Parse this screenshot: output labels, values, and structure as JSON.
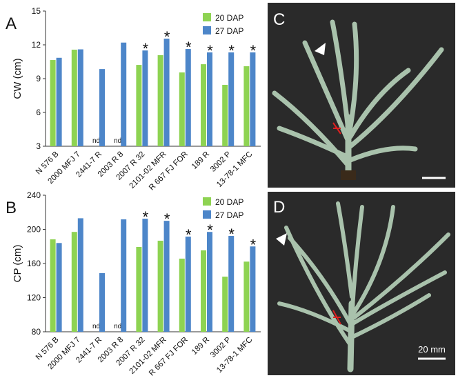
{
  "chart_data": [
    {
      "type": "bar",
      "panel": "A",
      "y_label": "CW (cm)",
      "categories": [
        "N 576 B",
        "2000 MFJ 7",
        "2441-7 R",
        "2003 R 8",
        "2007 R 32",
        "2101-02 MFR",
        "R 667 FJ FOR",
        "189 R",
        "3002 P",
        "13-78-1 MFC"
      ],
      "series": [
        {
          "name": "20 DAP",
          "color": "#8ed352",
          "values": [
            10.65,
            11.57,
            null,
            null,
            10.22,
            11.08,
            9.55,
            10.28,
            8.45,
            10.1
          ],
          "value_labels": [
            null,
            null,
            "nd",
            "nd",
            null,
            null,
            null,
            null,
            null,
            null
          ]
        },
        {
          "name": "27 DAP",
          "color": "#4d86c9",
          "values": [
            10.85,
            11.6,
            9.85,
            12.2,
            11.5,
            12.55,
            11.63,
            11.33,
            11.33,
            11.33
          ],
          "significance": [
            null,
            null,
            null,
            null,
            "*",
            "*",
            "*",
            "*",
            "*",
            "*"
          ]
        }
      ],
      "ylim": [
        3,
        15
      ],
      "yticks": [
        3,
        6,
        9,
        12,
        15
      ],
      "grid": false,
      "legend": "top-right"
    },
    {
      "type": "bar",
      "panel": "B",
      "y_label": "CP (cm)",
      "categories": [
        "N 576 B",
        "2000 MFJ 7",
        "2441-7 R",
        "2003 R 8",
        "2007 R 32",
        "2101-02 MFR",
        "R 667 FJ FOR",
        "189 R",
        "3002 P",
        "13-78-1 MFC"
      ],
      "series": [
        {
          "name": "20 DAP",
          "color": "#8ed352",
          "values": [
            188.3,
            197,
            null,
            null,
            179.4,
            186.7,
            165.7,
            175.4,
            144.6,
            162.2
          ],
          "value_labels": [
            null,
            null,
            "nd",
            "nd",
            null,
            null,
            null,
            null,
            null,
            null
          ]
        },
        {
          "name": "27 DAP",
          "color": "#4d86c9",
          "values": [
            184,
            213,
            148.7,
            211.7,
            212.5,
            210,
            191.5,
            197,
            192.3,
            180
          ],
          "significance": [
            null,
            null,
            null,
            null,
            "*",
            "*",
            "*",
            "*",
            "*",
            "*"
          ]
        }
      ],
      "ylim": [
        80,
        240
      ],
      "yticks": [
        80,
        120,
        160,
        200,
        240
      ],
      "grid": false,
      "legend": "top-right"
    }
  ],
  "photos": [
    {
      "label": "C"
    },
    {
      "label": "D",
      "scale_bar": "20 mm"
    }
  ]
}
